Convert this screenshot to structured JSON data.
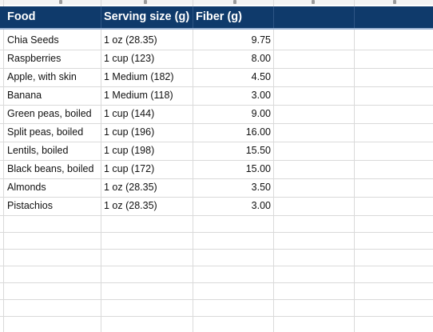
{
  "table": {
    "headers": {
      "food": "Food",
      "serving": "Serving size (g)",
      "fiber": "Fiber (g)"
    },
    "rows": [
      {
        "food": "Chia Seeds",
        "serving": "1 oz (28.35)",
        "fiber": "9.75"
      },
      {
        "food": "Raspberries",
        "serving": "1 cup (123)",
        "fiber": "8.00"
      },
      {
        "food": "Apple, with skin",
        "serving": "1 Medium (182)",
        "fiber": "4.50"
      },
      {
        "food": "Banana",
        "serving": "1 Medium (118)",
        "fiber": "3.00"
      },
      {
        "food": "Green peas, boiled",
        "serving": "1 cup (144)",
        "fiber": "9.00"
      },
      {
        "food": "Split peas, boiled",
        "serving": "1 cup (196)",
        "fiber": "16.00"
      },
      {
        "food": "Lentils, boiled",
        "serving": "1 cup (198)",
        "fiber": "15.50"
      },
      {
        "food": "Black beans, boiled",
        "serving": "1 cup (172)",
        "fiber": "15.00"
      },
      {
        "food": "Almonds",
        "serving": "1 oz (28.35)",
        "fiber": "3.50"
      },
      {
        "food": "Pistachios",
        "serving": "1 oz (28.35)",
        "fiber": "3.00"
      }
    ]
  },
  "colors": {
    "header_bg": "#0f3a6b",
    "header_text": "#ffffff",
    "gridline": "#dadada"
  }
}
